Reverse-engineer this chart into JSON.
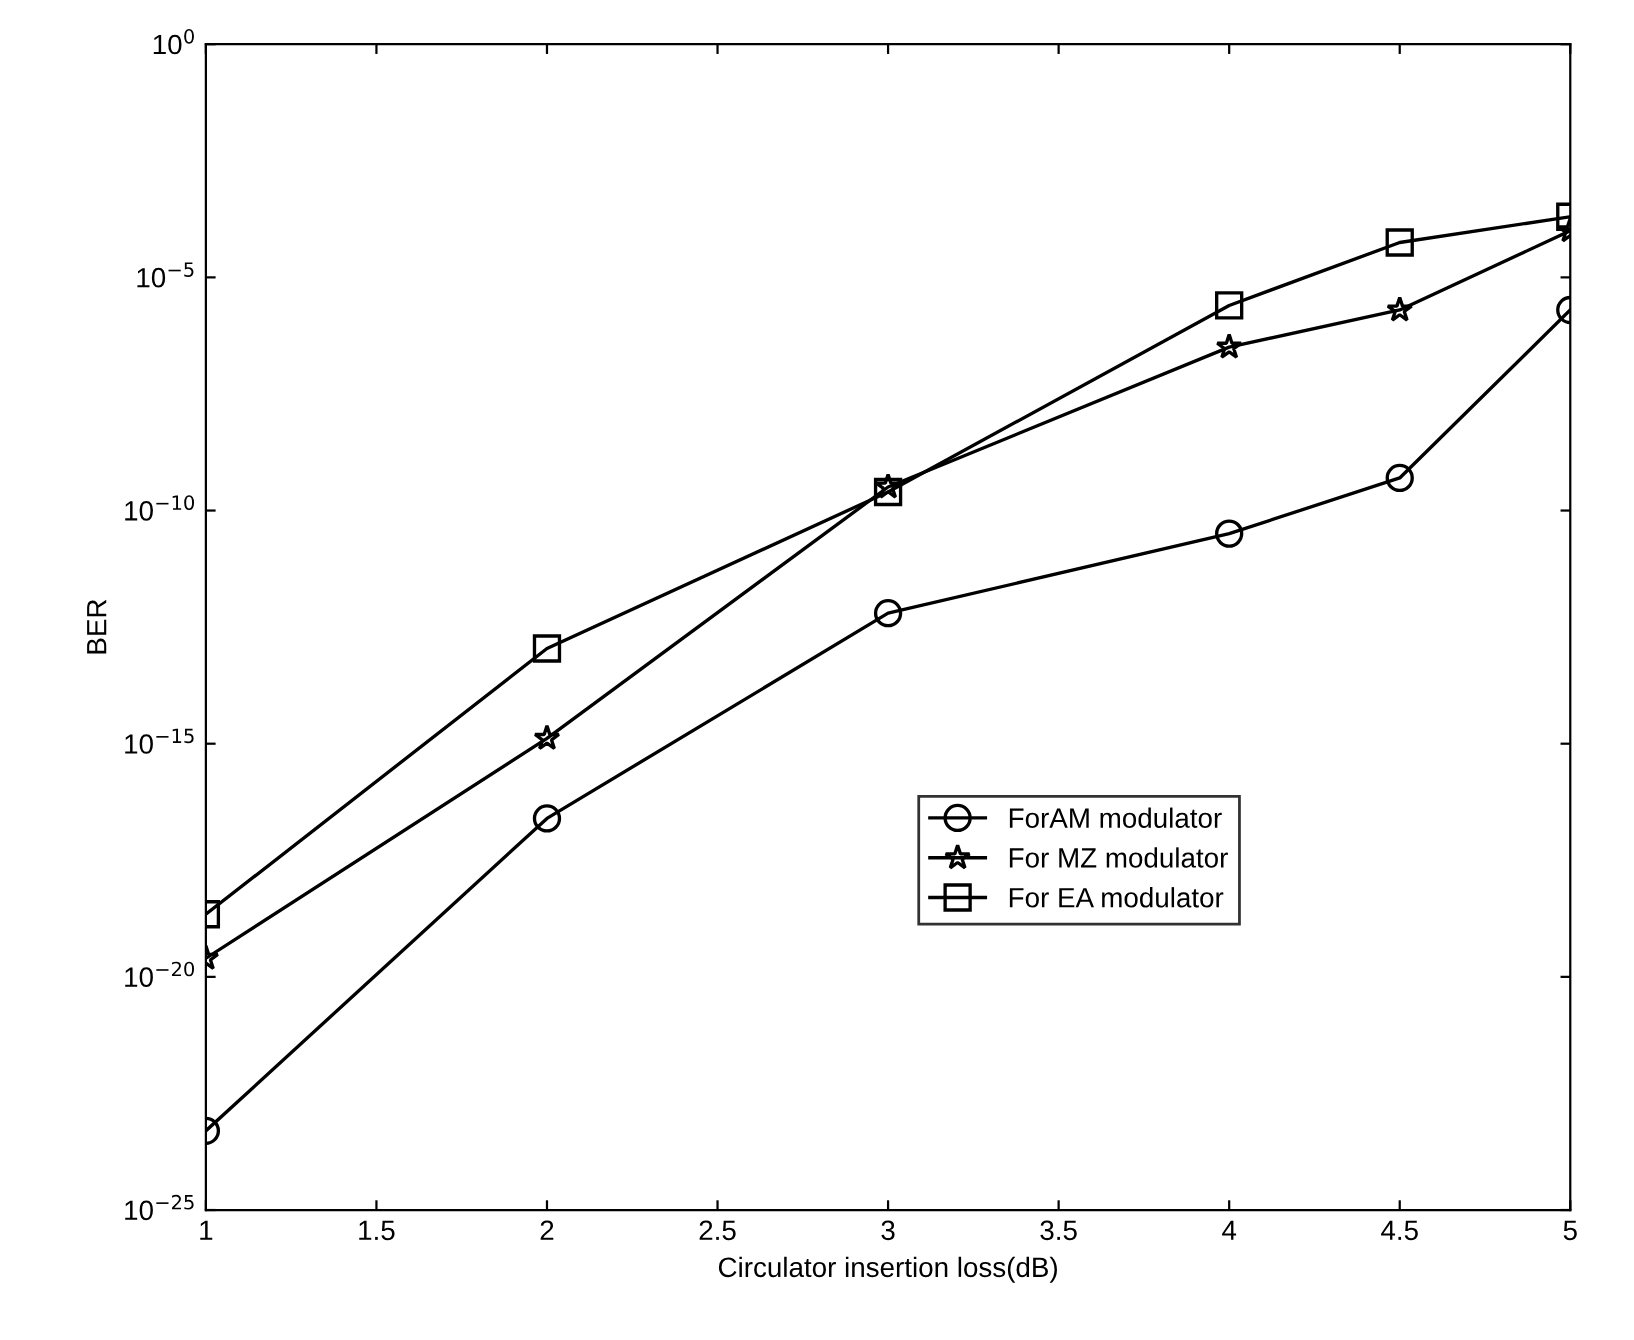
{
  "chart_data": {
    "type": "line",
    "xlabel": "Circulator insertion loss(dB)",
    "ylabel": "BER",
    "log": "y",
    "x": [
      1,
      2,
      3,
      4,
      4.5,
      5
    ],
    "series": [
      {
        "name": "ForAM modulator",
        "color": "#000000",
        "marker": "circle",
        "values": [
          5e-24,
          2.5e-17,
          6.3e-13,
          3.2e-11,
          5e-10,
          2e-06
        ]
      },
      {
        "name": "For MZ modulator",
        "color": "#000000",
        "marker": "star",
        "values": [
          2.5e-20,
          1.3e-15,
          3.2e-10,
          3.2e-07,
          2e-06,
          0.0001
        ]
      },
      {
        "name": "For EA modulator",
        "color": "#000000",
        "marker": "square",
        "values": [
          2.2e-19,
          1.1e-13,
          2.5e-10,
          2.5e-06,
          5.6e-05,
          0.0002
        ]
      }
    ],
    "xlim": [
      1,
      5
    ],
    "xticks": [
      1,
      1.5,
      2,
      2.5,
      3,
      3.5,
      4,
      4.5,
      5
    ],
    "ylim": [
      1e-25,
      1
    ],
    "yticks": [
      {
        "value": 1e-25,
        "label": "10$^{−25}$"
      },
      {
        "value": 1e-20,
        "label": "10$^{−20}$"
      },
      {
        "value": 1e-15,
        "label": "10$^{−15}$"
      },
      {
        "value": 1e-10,
        "label": "10$^{−10}$"
      },
      {
        "value": 1e-05,
        "label": "10$^{−5}$"
      },
      {
        "value": 1,
        "label": "10$^{0}$"
      }
    ],
    "grid": false,
    "legend": "center right",
    "line_style": "solid"
  }
}
